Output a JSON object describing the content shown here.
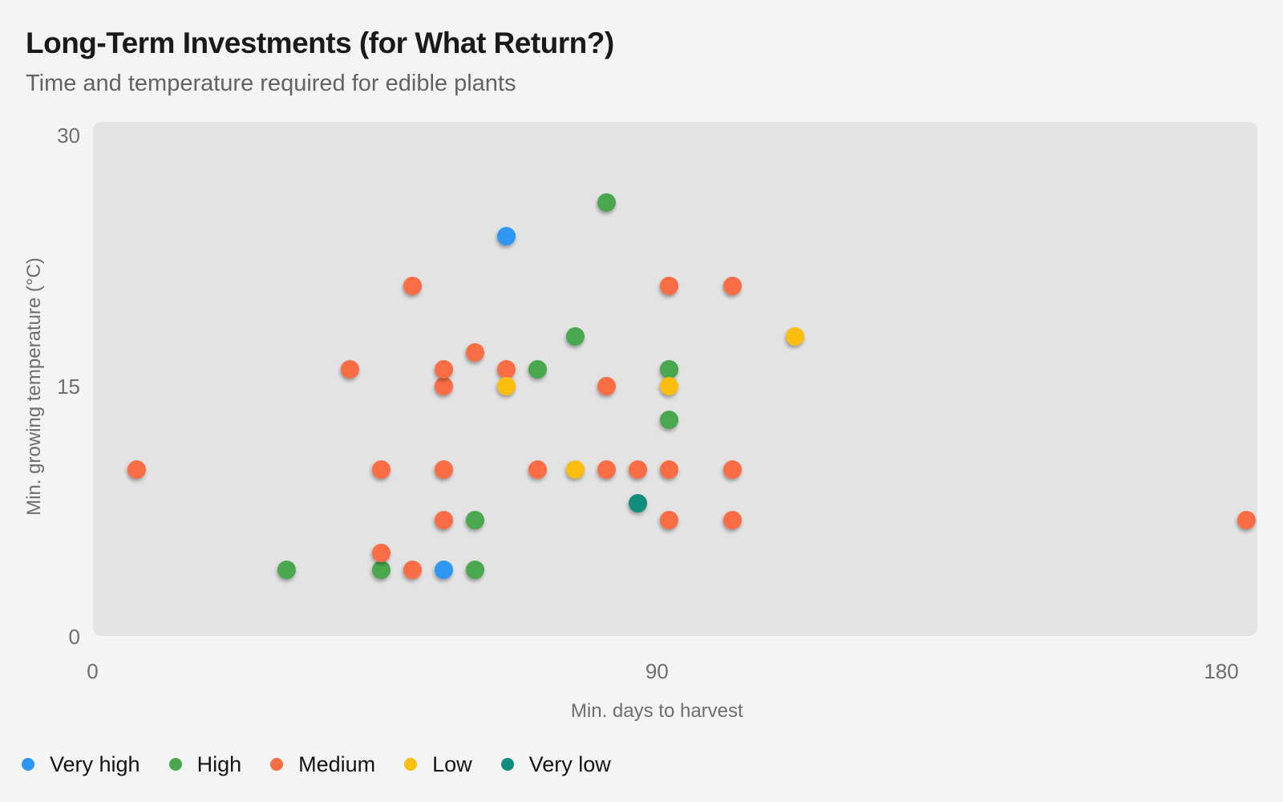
{
  "header": {
    "title": "Long-Term Investments (for What Return?)",
    "subtitle": "Time and temperature required for edible plants"
  },
  "chart_data": {
    "type": "scatter",
    "title": "Long-Term Investments (for What Return?)",
    "subtitle": "Time and temperature required for edible plants",
    "xlabel": "Min. days to harvest",
    "ylabel": "Min. growing temperature (°C)",
    "xlim": [
      0,
      186
    ],
    "ylim": [
      0,
      31
    ],
    "x_ticks": [
      0,
      90,
      180
    ],
    "y_ticks": [
      0,
      15,
      30
    ],
    "grid": false,
    "plot_background": "#E3E3E4",
    "legend_position": "bottom-left",
    "series": [
      {
        "name": "Very high",
        "color": "#2E96F3",
        "points": [
          [
            56,
            4
          ],
          [
            66,
            24
          ]
        ]
      },
      {
        "name": "High",
        "color": "#49A84E",
        "points": [
          [
            31,
            4
          ],
          [
            46,
            4
          ],
          [
            61,
            4
          ],
          [
            61,
            7
          ],
          [
            71,
            16
          ],
          [
            77,
            18
          ],
          [
            82,
            26
          ],
          [
            92,
            13
          ],
          [
            92,
            16
          ]
        ]
      },
      {
        "name": "Medium",
        "color": "#FB6D45",
        "points": [
          [
            7,
            10
          ],
          [
            41,
            16
          ],
          [
            46,
            5
          ],
          [
            46,
            10
          ],
          [
            51,
            4
          ],
          [
            51,
            21
          ],
          [
            56,
            7
          ],
          [
            56,
            10
          ],
          [
            56,
            15
          ],
          [
            56,
            16
          ],
          [
            61,
            17
          ],
          [
            66,
            16
          ],
          [
            71,
            10
          ],
          [
            82,
            10
          ],
          [
            82,
            15
          ],
          [
            87,
            10
          ],
          [
            92,
            7
          ],
          [
            92,
            10
          ],
          [
            92,
            21
          ],
          [
            102,
            7
          ],
          [
            102,
            10
          ],
          [
            102,
            21
          ],
          [
            184,
            7
          ]
        ]
      },
      {
        "name": "Low",
        "color": "#FCBE0D",
        "points": [
          [
            66,
            15
          ],
          [
            77,
            10
          ],
          [
            92,
            15
          ],
          [
            112,
            18
          ]
        ]
      },
      {
        "name": "Very low",
        "color": "#0F8E7D",
        "points": [
          [
            87,
            8
          ]
        ]
      }
    ]
  }
}
